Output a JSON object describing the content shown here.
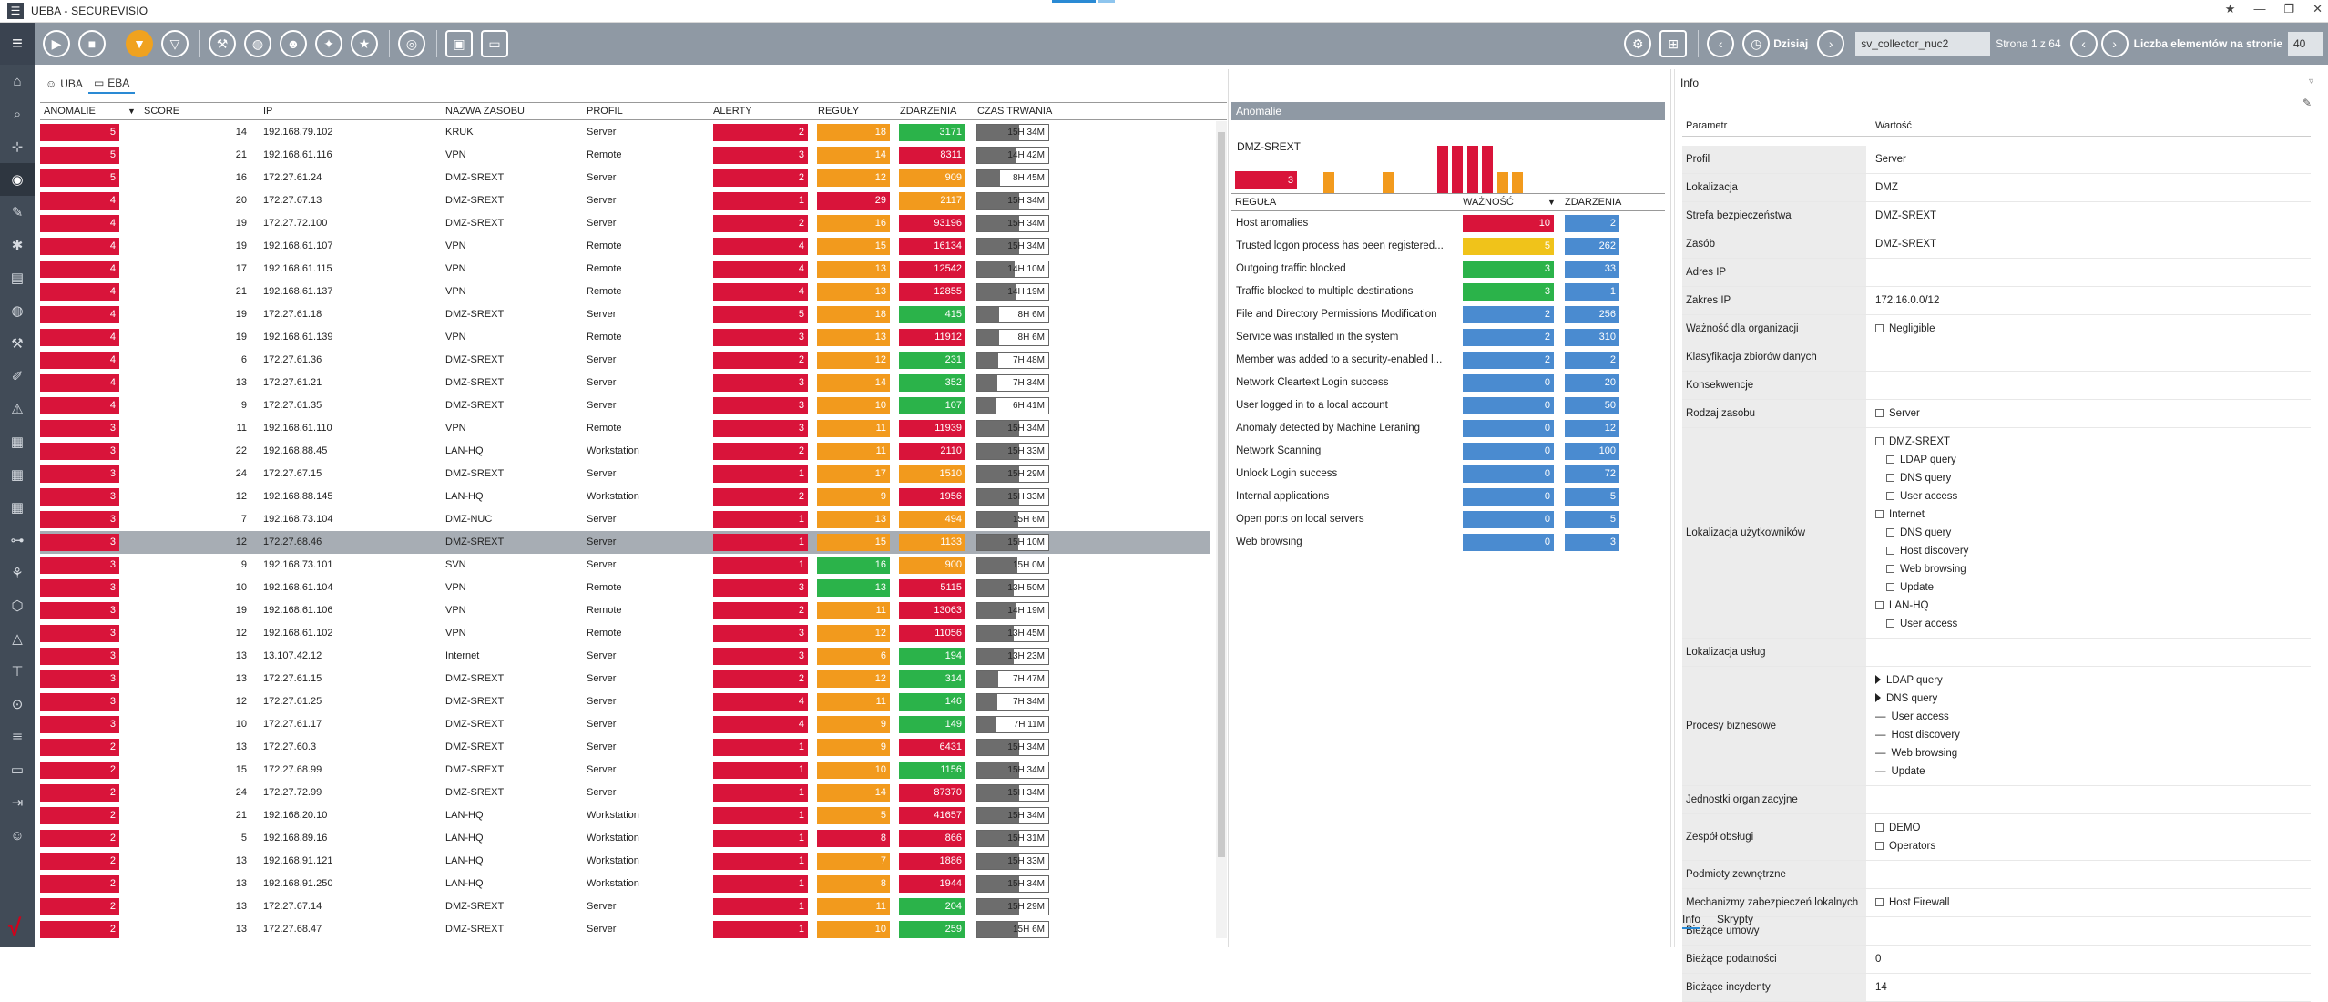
{
  "window": {
    "title": "UEBA -  SECUREVISIO",
    "controls": [
      "★",
      "—",
      "❐",
      "✕"
    ]
  },
  "toolbar": {
    "today_label": "Dzisiaj",
    "collector": "sv_collector_nuc2",
    "page_text": "Strona 1 z 64",
    "per_page_label": "Liczba elementów na stronie",
    "per_page_value": "40"
  },
  "tabs": [
    {
      "label": "UBA"
    },
    {
      "label": "EBA"
    }
  ],
  "table": {
    "headers": [
      "ANOMALIE",
      "SCORE",
      "IP",
      "NAZWA ZASOBU",
      "PROFIL",
      "ALERTY",
      "REGUŁY",
      "ZDARZENIA",
      "CZAS TRWANIA"
    ],
    "rows": [
      {
        "anom": "5",
        "score": "14",
        "ip": "192.168.79.102",
        "name": "KRUK",
        "profil": "Server",
        "alerty": "2",
        "reguly": "18",
        "rc": "orange",
        "zd": "3171",
        "zc": "green",
        "dur": "15H 34M",
        "df": 1.0
      },
      {
        "anom": "5",
        "score": "21",
        "ip": "192.168.61.116",
        "name": "VPN",
        "profil": "Remote",
        "alerty": "3",
        "reguly": "14",
        "rc": "orange",
        "zd": "8311",
        "zc": "red",
        "dur": "14H 42M",
        "df": 0.94
      },
      {
        "anom": "5",
        "score": "16",
        "ip": "172.27.61.24",
        "name": "DMZ-SREXT",
        "profil": "Server",
        "alerty": "2",
        "reguly": "12",
        "rc": "orange",
        "zd": "909",
        "zc": "orange",
        "dur": "8H 45M",
        "df": 0.55
      },
      {
        "anom": "4",
        "score": "20",
        "ip": "172.27.67.13",
        "name": "DMZ-SREXT",
        "profil": "Server",
        "alerty": "1",
        "reguly": "29",
        "rc": "red",
        "zd": "2117",
        "zc": "orange",
        "dur": "15H 34M",
        "df": 1.0
      },
      {
        "anom": "4",
        "score": "19",
        "ip": "172.27.72.100",
        "name": "DMZ-SREXT",
        "profil": "Server",
        "alerty": "2",
        "reguly": "16",
        "rc": "orange",
        "zd": "93196",
        "zc": "red",
        "dur": "15H 34M",
        "df": 1.0
      },
      {
        "anom": "4",
        "score": "19",
        "ip": "192.168.61.107",
        "name": "VPN",
        "profil": "Remote",
        "alerty": "4",
        "reguly": "15",
        "rc": "orange",
        "zd": "16134",
        "zc": "red",
        "dur": "15H 34M",
        "df": 1.0
      },
      {
        "anom": "4",
        "score": "17",
        "ip": "192.168.61.115",
        "name": "VPN",
        "profil": "Remote",
        "alerty": "4",
        "reguly": "13",
        "rc": "orange",
        "zd": "12542",
        "zc": "red",
        "dur": "14H 10M",
        "df": 0.9
      },
      {
        "anom": "4",
        "score": "21",
        "ip": "192.168.61.137",
        "name": "VPN",
        "profil": "Remote",
        "alerty": "4",
        "reguly": "13",
        "rc": "orange",
        "zd": "12855",
        "zc": "red",
        "dur": "14H 19M",
        "df": 0.92
      },
      {
        "anom": "4",
        "score": "19",
        "ip": "172.27.61.18",
        "name": "DMZ-SREXT",
        "profil": "Server",
        "alerty": "5",
        "reguly": "18",
        "rc": "orange",
        "zd": "415",
        "zc": "green",
        "dur": "8H 6M",
        "df": 0.52
      },
      {
        "anom": "4",
        "score": "19",
        "ip": "192.168.61.139",
        "name": "VPN",
        "profil": "Remote",
        "alerty": "3",
        "reguly": "13",
        "rc": "orange",
        "zd": "11912",
        "zc": "red",
        "dur": "8H 6M",
        "df": 0.52
      },
      {
        "anom": "4",
        "score": "6",
        "ip": "172.27.61.36",
        "name": "DMZ-SREXT",
        "profil": "Server",
        "alerty": "2",
        "reguly": "12",
        "rc": "orange",
        "zd": "231",
        "zc": "green",
        "dur": "7H 48M",
        "df": 0.5
      },
      {
        "anom": "4",
        "score": "13",
        "ip": "172.27.61.21",
        "name": "DMZ-SREXT",
        "profil": "Server",
        "alerty": "3",
        "reguly": "14",
        "rc": "orange",
        "zd": "352",
        "zc": "green",
        "dur": "7H 34M",
        "df": 0.48
      },
      {
        "anom": "4",
        "score": "9",
        "ip": "172.27.61.35",
        "name": "DMZ-SREXT",
        "profil": "Server",
        "alerty": "3",
        "reguly": "10",
        "rc": "orange",
        "zd": "107",
        "zc": "green",
        "dur": "6H 41M",
        "df": 0.43
      },
      {
        "anom": "3",
        "score": "11",
        "ip": "192.168.61.110",
        "name": "VPN",
        "profil": "Remote",
        "alerty": "3",
        "reguly": "11",
        "rc": "orange",
        "zd": "11939",
        "zc": "red",
        "dur": "15H 34M",
        "df": 1.0
      },
      {
        "anom": "3",
        "score": "22",
        "ip": "192.168.88.45",
        "name": "LAN-HQ",
        "profil": "Workstation",
        "alerty": "2",
        "reguly": "11",
        "rc": "orange",
        "zd": "2110",
        "zc": "red",
        "dur": "15H 33M",
        "df": 1.0
      },
      {
        "anom": "3",
        "score": "24",
        "ip": "172.27.67.15",
        "name": "DMZ-SREXT",
        "profil": "Server",
        "alerty": "1",
        "reguly": "17",
        "rc": "orange",
        "zd": "1510",
        "zc": "orange",
        "dur": "15H 29M",
        "df": 0.99
      },
      {
        "anom": "3",
        "score": "12",
        "ip": "192.168.88.145",
        "name": "LAN-HQ",
        "profil": "Workstation",
        "alerty": "2",
        "reguly": "9",
        "rc": "orange",
        "zd": "1956",
        "zc": "red",
        "dur": "15H 33M",
        "df": 1.0
      },
      {
        "anom": "3",
        "score": "7",
        "ip": "192.168.73.104",
        "name": "DMZ-NUC",
        "profil": "Server",
        "alerty": "1",
        "reguly": "13",
        "rc": "orange",
        "zd": "494",
        "zc": "orange",
        "dur": "15H 6M",
        "df": 0.97
      },
      {
        "anom": "3",
        "score": "12",
        "ip": "172.27.68.46",
        "name": "DMZ-SREXT",
        "profil": "Server",
        "alerty": "1",
        "reguly": "15",
        "rc": "orange",
        "zd": "1133",
        "zc": "orange",
        "dur": "15H 10M",
        "df": 0.97,
        "selected": true
      },
      {
        "anom": "3",
        "score": "9",
        "ip": "192.168.73.101",
        "name": "SVN",
        "profil": "Server",
        "alerty": "1",
        "reguly": "16",
        "rc": "green",
        "zd": "900",
        "zc": "orange",
        "dur": "15H 0M",
        "df": 0.96
      },
      {
        "anom": "3",
        "score": "10",
        "ip": "192.168.61.104",
        "name": "VPN",
        "profil": "Remote",
        "alerty": "3",
        "reguly": "13",
        "rc": "green",
        "zd": "5115",
        "zc": "red",
        "dur": "13H 50M",
        "df": 0.88
      },
      {
        "anom": "3",
        "score": "19",
        "ip": "192.168.61.106",
        "name": "VPN",
        "profil": "Remote",
        "alerty": "2",
        "reguly": "11",
        "rc": "orange",
        "zd": "13063",
        "zc": "red",
        "dur": "14H 19M",
        "df": 0.92
      },
      {
        "anom": "3",
        "score": "12",
        "ip": "192.168.61.102",
        "name": "VPN",
        "profil": "Remote",
        "alerty": "3",
        "reguly": "12",
        "rc": "orange",
        "zd": "11056",
        "zc": "red",
        "dur": "13H 45M",
        "df": 0.88
      },
      {
        "anom": "3",
        "score": "13",
        "ip": "13.107.42.12",
        "name": "Internet",
        "profil": "Server",
        "alerty": "3",
        "reguly": "6",
        "rc": "orange",
        "zd": "194",
        "zc": "green",
        "dur": "13H 23M",
        "df": 0.86
      },
      {
        "anom": "3",
        "score": "13",
        "ip": "172.27.61.15",
        "name": "DMZ-SREXT",
        "profil": "Server",
        "alerty": "2",
        "reguly": "12",
        "rc": "orange",
        "zd": "314",
        "zc": "green",
        "dur": "7H 47M",
        "df": 0.5
      },
      {
        "anom": "3",
        "score": "12",
        "ip": "172.27.61.25",
        "name": "DMZ-SREXT",
        "profil": "Server",
        "alerty": "4",
        "reguly": "11",
        "rc": "orange",
        "zd": "146",
        "zc": "green",
        "dur": "7H 34M",
        "df": 0.48
      },
      {
        "anom": "3",
        "score": "10",
        "ip": "172.27.61.17",
        "name": "DMZ-SREXT",
        "profil": "Server",
        "alerty": "4",
        "reguly": "9",
        "rc": "orange",
        "zd": "149",
        "zc": "green",
        "dur": "7H 11M",
        "df": 0.46
      },
      {
        "anom": "2",
        "score": "13",
        "ip": "172.27.60.3",
        "name": "DMZ-SREXT",
        "profil": "Server",
        "alerty": "1",
        "reguly": "9",
        "rc": "orange",
        "zd": "6431",
        "zc": "red",
        "dur": "15H 34M",
        "df": 1.0
      },
      {
        "anom": "2",
        "score": "15",
        "ip": "172.27.68.99",
        "name": "DMZ-SREXT",
        "profil": "Server",
        "alerty": "1",
        "reguly": "10",
        "rc": "orange",
        "zd": "1156",
        "zc": "green",
        "dur": "15H 34M",
        "df": 1.0
      },
      {
        "anom": "2",
        "score": "24",
        "ip": "172.27.72.99",
        "name": "DMZ-SREXT",
        "profil": "Server",
        "alerty": "1",
        "reguly": "14",
        "rc": "orange",
        "zd": "87370",
        "zc": "red",
        "dur": "15H 34M",
        "df": 1.0
      },
      {
        "anom": "2",
        "score": "21",
        "ip": "192.168.20.10",
        "name": "LAN-HQ",
        "profil": "Workstation",
        "alerty": "1",
        "reguly": "5",
        "rc": "orange",
        "zd": "41657",
        "zc": "red",
        "dur": "15H 34M",
        "df": 1.0
      },
      {
        "anom": "2",
        "score": "5",
        "ip": "192.168.89.16",
        "name": "LAN-HQ",
        "profil": "Workstation",
        "alerty": "1",
        "reguly": "8",
        "rc": "red",
        "zd": "866",
        "zc": "red",
        "dur": "15H 31M",
        "df": 1.0
      },
      {
        "anom": "2",
        "score": "13",
        "ip": "192.168.91.121",
        "name": "LAN-HQ",
        "profil": "Workstation",
        "alerty": "1",
        "reguly": "7",
        "rc": "orange",
        "zd": "1886",
        "zc": "red",
        "dur": "15H 33M",
        "df": 1.0
      },
      {
        "anom": "2",
        "score": "13",
        "ip": "192.168.91.250",
        "name": "LAN-HQ",
        "profil": "Workstation",
        "alerty": "1",
        "reguly": "8",
        "rc": "orange",
        "zd": "1944",
        "zc": "red",
        "dur": "15H 34M",
        "df": 1.0
      },
      {
        "anom": "2",
        "score": "13",
        "ip": "172.27.67.14",
        "name": "DMZ-SREXT",
        "profil": "Server",
        "alerty": "1",
        "reguly": "11",
        "rc": "orange",
        "zd": "204",
        "zc": "green",
        "dur": "15H 29M",
        "df": 0.99
      },
      {
        "anom": "2",
        "score": "13",
        "ip": "172.27.68.47",
        "name": "DMZ-SREXT",
        "profil": "Server",
        "alerty": "1",
        "reguly": "10",
        "rc": "orange",
        "zd": "259",
        "zc": "green",
        "dur": "15H 6M",
        "df": 0.97
      }
    ]
  },
  "anomalies": {
    "title": "Anomalie",
    "zone": "DMZ-SREXT",
    "zone_count": "3",
    "histogram": [
      {
        "c": "orange",
        "h": 0.45
      },
      {
        "c": "orange",
        "h": 0.45
      },
      {
        "c": "red",
        "h": 1.0
      },
      {
        "c": "red",
        "h": 1.0
      },
      {
        "c": "red",
        "h": 1.0
      },
      {
        "c": "red",
        "h": 1.0
      },
      {
        "c": "orange",
        "h": 0.45
      },
      {
        "c": "orange",
        "h": 0.45
      }
    ],
    "headers": [
      "REGUŁA",
      "WAŻNOŚĆ",
      "ZDARZENIA"
    ],
    "rules": [
      {
        "name": "Host anomalies",
        "w": "10",
        "wc": "red",
        "e": "2"
      },
      {
        "name": "Trusted logon process has been registered...",
        "w": "5",
        "wc": "yellow",
        "e": "262"
      },
      {
        "name": "Outgoing traffic blocked",
        "w": "3",
        "wc": "green",
        "e": "33"
      },
      {
        "name": "Traffic blocked to multiple destinations",
        "w": "3",
        "wc": "green",
        "e": "1"
      },
      {
        "name": "File and Directory Permissions Modification",
        "w": "2",
        "wc": "blue",
        "e": "256"
      },
      {
        "name": "Service was installed in the system",
        "w": "2",
        "wc": "blue",
        "e": "310"
      },
      {
        "name": "Member was added to a security-enabled l...",
        "w": "2",
        "wc": "blue",
        "e": "2"
      },
      {
        "name": "Network Cleartext Login success",
        "w": "0",
        "wc": "blue",
        "e": "20"
      },
      {
        "name": "User logged in to a local account",
        "w": "0",
        "wc": "blue",
        "e": "50"
      },
      {
        "name": "Anomaly detected by Machine Leraning",
        "w": "0",
        "wc": "blue",
        "e": "12"
      },
      {
        "name": "Network Scanning",
        "w": "0",
        "wc": "blue",
        "e": "100"
      },
      {
        "name": "Unlock Login success",
        "w": "0",
        "wc": "blue",
        "e": "72"
      },
      {
        "name": "Internal applications",
        "w": "0",
        "wc": "blue",
        "e": "5"
      },
      {
        "name": "Open ports on local servers",
        "w": "0",
        "wc": "blue",
        "e": "5"
      },
      {
        "name": "Web browsing",
        "w": "0",
        "wc": "blue",
        "e": "3"
      }
    ]
  },
  "info": {
    "title": "Info",
    "headers": [
      "Parametr",
      "Wartość"
    ],
    "rows": [
      {
        "k": "Profil",
        "lines": [
          {
            "t": "Server"
          }
        ]
      },
      {
        "k": "Lokalizacja",
        "lines": [
          {
            "t": "DMZ"
          }
        ]
      },
      {
        "k": "Strefa bezpieczeństwa",
        "lines": [
          {
            "t": "DMZ-SREXT"
          }
        ]
      },
      {
        "k": "Zasób",
        "lines": [
          {
            "t": "DMZ-SREXT"
          }
        ]
      },
      {
        "k": "Adres IP",
        "lines": [
          {
            "t": ""
          }
        ]
      },
      {
        "k": "Zakres IP",
        "lines": [
          {
            "t": "172.16.0.0/12"
          }
        ]
      },
      {
        "k": "Ważność dla organizacji",
        "lines": [
          {
            "t": "Negligible",
            "cb": true
          }
        ]
      },
      {
        "k": "Klasyfikacja zbiorów danych",
        "lines": [
          {
            "t": ""
          }
        ]
      },
      {
        "k": "Konsekwencje",
        "lines": [
          {
            "t": ""
          }
        ]
      },
      {
        "k": "Rodzaj zasobu",
        "lines": [
          {
            "t": "Server",
            "cb": true
          }
        ]
      },
      {
        "k": "Lokalizacja użytkowników",
        "lines": [
          {
            "t": "DMZ-SREXT",
            "cb": true
          },
          {
            "t": "LDAP query",
            "cb": true,
            "ind": 1
          },
          {
            "t": "DNS query",
            "cb": true,
            "ind": 1
          },
          {
            "t": "User access",
            "cb": true,
            "ind": 1
          },
          {
            "t": "Internet",
            "cb": true
          },
          {
            "t": "DNS query",
            "cb": true,
            "ind": 1
          },
          {
            "t": "Host discovery",
            "cb": true,
            "ind": 1
          },
          {
            "t": "Web browsing",
            "cb": true,
            "ind": 1
          },
          {
            "t": "Update",
            "cb": true,
            "ind": 1
          },
          {
            "t": "LAN-HQ",
            "cb": true
          },
          {
            "t": "User access",
            "cb": true,
            "ind": 1
          }
        ]
      },
      {
        "k": "Lokalizacja usług",
        "lines": [
          {
            "t": ""
          }
        ]
      },
      {
        "k": "Procesy biznesowe",
        "lines": [
          {
            "t": "LDAP query",
            "tri": true
          },
          {
            "t": "DNS query",
            "tri": true
          },
          {
            "t": "User access",
            "dash": true
          },
          {
            "t": "Host discovery",
            "dash": true
          },
          {
            "t": "Web browsing",
            "dash": true
          },
          {
            "t": "Update",
            "dash": true
          }
        ]
      },
      {
        "k": "Jednostki organizacyjne",
        "lines": [
          {
            "t": ""
          }
        ]
      },
      {
        "k": "Zespół obsługi",
        "lines": [
          {
            "t": "DEMO",
            "cb": true
          },
          {
            "t": "Operators",
            "cb": true
          }
        ]
      },
      {
        "k": "Podmioty zewnętrzne",
        "lines": [
          {
            "t": ""
          }
        ]
      },
      {
        "k": "Mechanizmy zabezpieczeń lokalnych",
        "lines": [
          {
            "t": "Host Firewall",
            "cb": true
          }
        ]
      },
      {
        "k": "Bieżące umowy",
        "lines": [
          {
            "t": ""
          }
        ]
      },
      {
        "k": "Bieżące podatności",
        "lines": [
          {
            "t": "0"
          }
        ]
      },
      {
        "k": "Bieżące incydenty",
        "lines": [
          {
            "t": "14"
          }
        ]
      }
    ],
    "bottom_tabs": [
      "Info",
      "Skrypty"
    ]
  },
  "colors": {
    "red": "#d9143a",
    "orange": "#f29a1d",
    "green": "#2bb34a",
    "yellow": "#f0c31a",
    "blue": "#4a8bd0",
    "toolbar": "#8f99a4",
    "sidebar": "#414b57"
  }
}
